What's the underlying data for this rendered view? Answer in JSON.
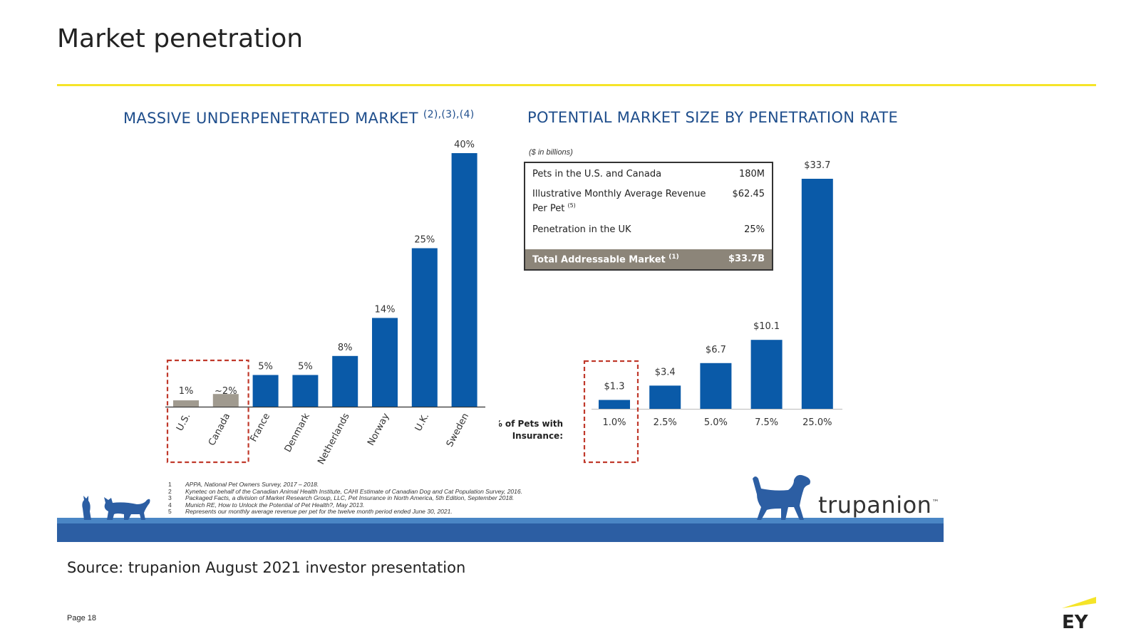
{
  "title": "Market penetration",
  "source": "Source:  trupanion August 2021 investor presentation",
  "page": "Page 18",
  "brand": "trupanion",
  "brand_tm": "™",
  "ey_logo": "EY",
  "colors": {
    "bar": "#0a5aa8",
    "bar_gray": "#a09a8f",
    "accent_red": "#c0392b",
    "rule_yellow": "#f5e428",
    "floor_dark": "#2c5ea3",
    "floor_light": "#4a86c5"
  },
  "left_chart_title": "MASSIVE UNDERPENETRATED MARKET",
  "left_chart_refs": "(2),(3),(4)",
  "right_chart_title": "POTENTIAL MARKET SIZE BY PENETRATION RATE",
  "units_note": "($ in billions)",
  "table": {
    "rows": [
      {
        "label": "Pets in the U.S. and Canada",
        "value": "180M"
      },
      {
        "label": "Illustrative Monthly Average Revenue Per Pet",
        "ref": "(5)",
        "value": "$62.45"
      },
      {
        "label": "Penetration in the UK",
        "value": "25%"
      }
    ],
    "total_label": "Total Addressable Market",
    "total_ref": "(1)",
    "total_value": "$33.7B"
  },
  "x_axis_label": "% of Pets with Insurance:",
  "footnotes": [
    {
      "n": "1",
      "text": "APPA, National Pet Owners Survey, 2017 – 2018."
    },
    {
      "n": "2",
      "text": "Kynetec on behalf of the Canadian Animal Health Institute, CAHI Estimate of Canadian Dog and Cat Population Survey, 2016."
    },
    {
      "n": "3",
      "text": "Packaged Facts, a division of Market Research Group, LLC, Pet Insurance in North America, 5th Edition, September 2018."
    },
    {
      "n": "4",
      "text": "Munich RE, How to Unlock the Potential of Pet Health?, May 2013."
    },
    {
      "n": "5",
      "text": "Represents our monthly average revenue per pet for the twelve month period ended June 30, 2021."
    }
  ],
  "chart_data": [
    {
      "type": "bar",
      "title": "MASSIVE UNDERPENETRATED MARKET",
      "categories": [
        "U.S.",
        "Canada",
        "France",
        "Denmark",
        "Netherlands",
        "Norway",
        "U.K.",
        "Sweden"
      ],
      "values": [
        1,
        2,
        5,
        5,
        8,
        14,
        25,
        40
      ],
      "data_labels": [
        "1%",
        "~2%",
        "5%",
        "5%",
        "8%",
        "14%",
        "25%",
        "40%"
      ],
      "highlighted": [
        "U.S.",
        "Canada"
      ],
      "ylim": [
        0,
        40
      ]
    },
    {
      "type": "bar",
      "title": "POTENTIAL MARKET SIZE BY PENETRATION RATE",
      "categories": [
        "1.0%",
        "2.5%",
        "5.0%",
        "7.5%",
        "25.0%"
      ],
      "values": [
        1.3,
        3.4,
        6.7,
        10.1,
        33.7
      ],
      "data_labels": [
        "$1.3",
        "$3.4",
        "$6.7",
        "$10.1",
        "$33.7"
      ],
      "highlighted": [
        "1.0%"
      ],
      "ylim": [
        0,
        33.7
      ]
    }
  ]
}
